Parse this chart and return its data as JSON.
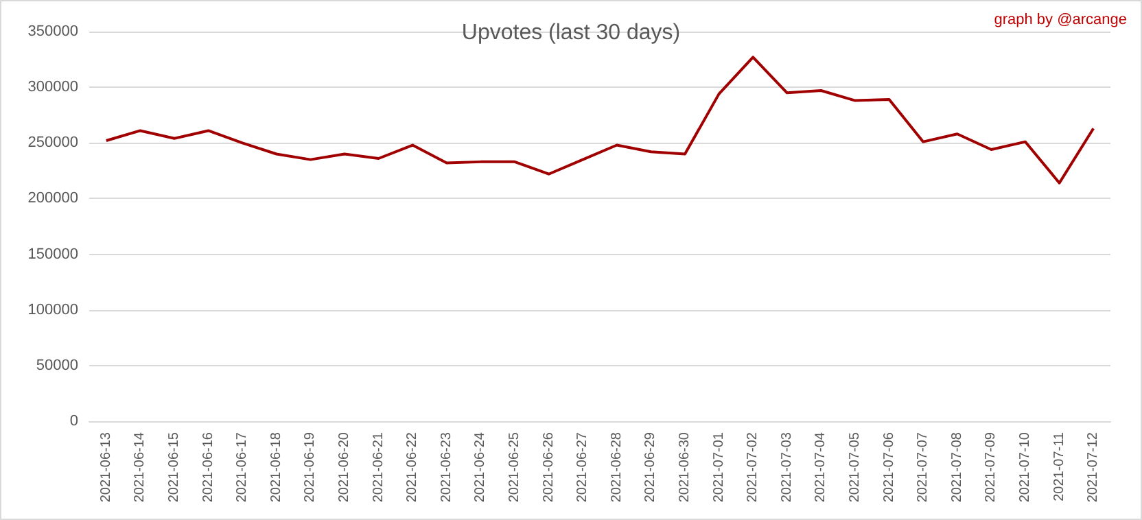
{
  "chart_data": {
    "type": "line",
    "title": "Upvotes (last 30 days)",
    "annotations": [
      "graph by @arcange"
    ],
    "categories": [
      "2021-06-13",
      "2021-06-14",
      "2021-06-15",
      "2021-06-16",
      "2021-06-17",
      "2021-06-18",
      "2021-06-19",
      "2021-06-20",
      "2021-06-21",
      "2021-06-22",
      "2021-06-23",
      "2021-06-24",
      "2021-06-25",
      "2021-06-26",
      "2021-06-27",
      "2021-06-28",
      "2021-06-29",
      "2021-06-30",
      "2021-07-01",
      "2021-07-02",
      "2021-07-03",
      "2021-07-04",
      "2021-07-05",
      "2021-07-06",
      "2021-07-07",
      "2021-07-08",
      "2021-07-09",
      "2021-07-10",
      "2021-07-11",
      "2021-07-12"
    ],
    "series": [
      {
        "color": "#a00000",
        "values": [
          252000,
          261000,
          254000,
          261000,
          250000,
          240000,
          235000,
          240000,
          236000,
          248000,
          232000,
          233000,
          233000,
          222000,
          235000,
          248000,
          242000,
          240000,
          294000,
          327000,
          295000,
          297000,
          288000,
          289000,
          251000,
          258000,
          244000,
          251000,
          214000,
          263000
        ]
      }
    ],
    "ylim": [
      0,
      350000
    ],
    "yticks": [
      0,
      50000,
      100000,
      150000,
      200000,
      250000,
      300000,
      350000
    ],
    "grid": "y",
    "marker": "none",
    "line_style": "solid"
  }
}
